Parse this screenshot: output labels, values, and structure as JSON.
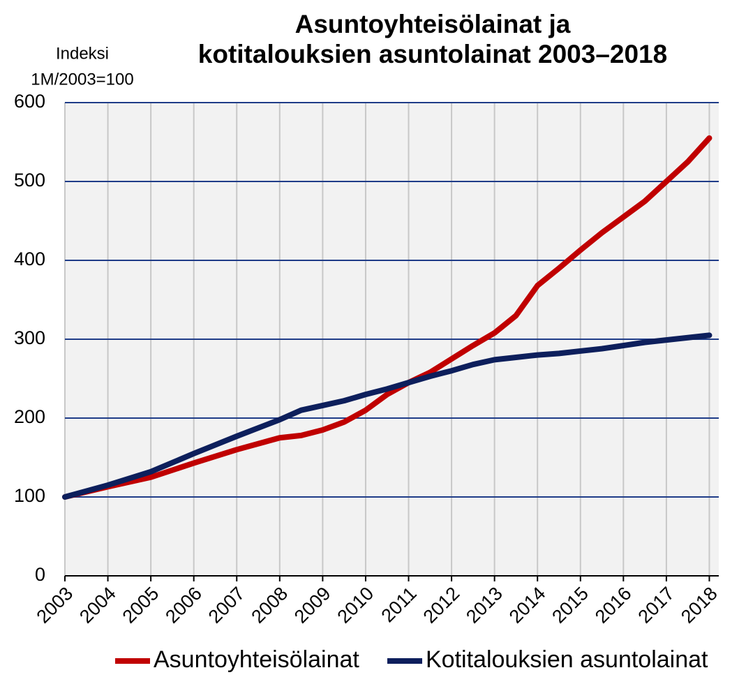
{
  "chart_data": {
    "type": "line",
    "title": [
      "Asuntoyhteisölainat ja",
      "kotitalouksien asuntolainat 2003–2018"
    ],
    "ylabel": [
      "Indeksi",
      "1M/2003=100"
    ],
    "x": [
      2003,
      2004,
      2005,
      2006,
      2007,
      2008,
      2008.5,
      2009,
      2009.5,
      2010,
      2010.5,
      2011,
      2011.5,
      2012,
      2012.5,
      2013,
      2013.5,
      2014,
      2014.5,
      2015,
      2015.5,
      2016,
      2016.5,
      2017,
      2017.5,
      2018
    ],
    "series": [
      {
        "name": "Asuntoyhteisölainat",
        "color": "#c00000",
        "values": [
          100,
          113,
          125,
          143,
          160,
          175,
          178,
          185,
          195,
          210,
          230,
          245,
          258,
          275,
          292,
          308,
          330,
          368,
          390,
          413,
          435,
          455,
          475,
          500,
          525,
          555
        ]
      },
      {
        "name": "Kotitalouksien asuntolainat",
        "color": "#0d1f5c",
        "values": [
          100,
          115,
          132,
          155,
          177,
          198,
          210,
          216,
          222,
          230,
          237,
          245,
          253,
          260,
          268,
          274,
          277,
          280,
          282,
          285,
          288,
          292,
          296,
          299,
          302,
          305
        ]
      }
    ],
    "xlim": [
      2003,
      2018.22
    ],
    "xticks": [
      2003,
      2004,
      2005,
      2006,
      2007,
      2008,
      2009,
      2010,
      2011,
      2012,
      2013,
      2014,
      2015,
      2016,
      2017,
      2018
    ],
    "ylim": [
      0,
      600
    ],
    "yticks": [
      0,
      100,
      200,
      300,
      400,
      500,
      600
    ],
    "grid": true,
    "legend": "bottom"
  }
}
